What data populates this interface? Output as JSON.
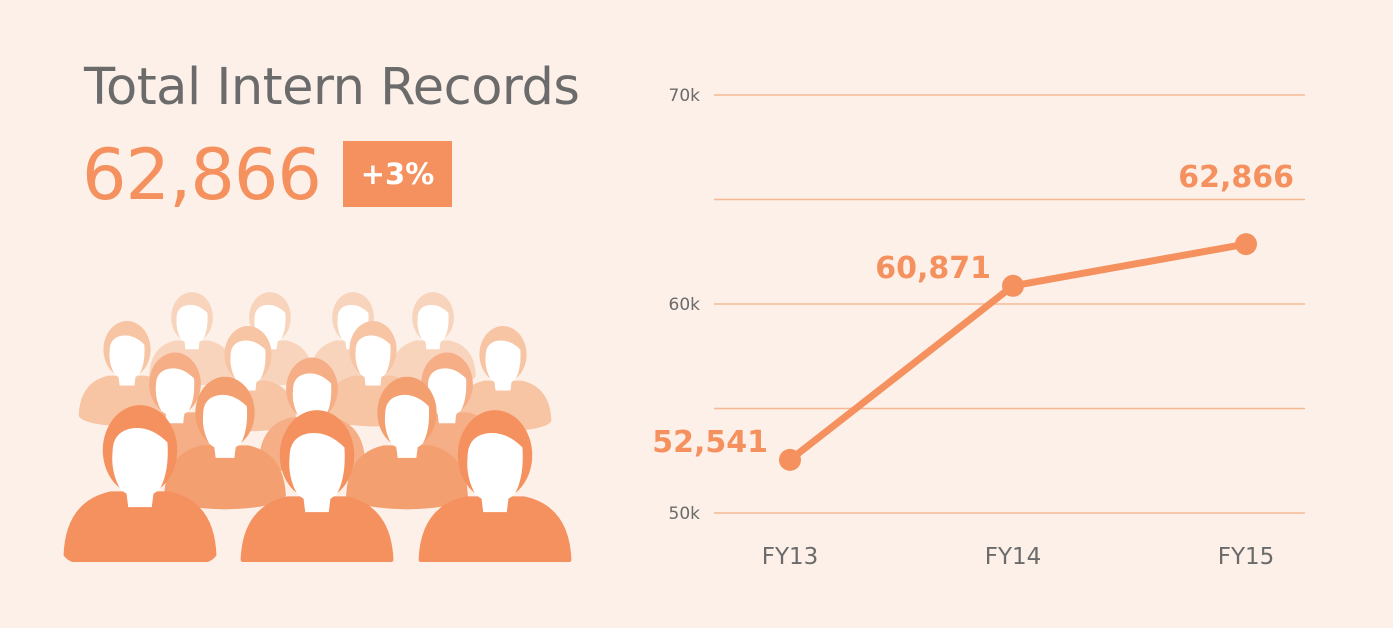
{
  "header": {
    "title": "Total Intern Records",
    "value": "62,866",
    "change_badge": "+3%"
  },
  "colors": {
    "background": "#fdf0e8",
    "accent": "#f4915e",
    "grid": "#f6b894",
    "text": "#6b6b6b"
  },
  "illustration": {
    "icon": "people-crowd-icon"
  },
  "chart_data": {
    "type": "line",
    "categories": [
      "FY13",
      "FY14",
      "FY15"
    ],
    "series": [
      {
        "values": [
          52541,
          60871,
          62866
        ]
      }
    ],
    "data_labels": [
      "52,541",
      "60,871",
      "62,866"
    ],
    "ylim": [
      50000,
      70000
    ],
    "yticks": [
      {
        "value": 50000,
        "label": "50k"
      },
      {
        "value": 60000,
        "label": "60k"
      },
      {
        "value": 70000,
        "label": "70k"
      }
    ],
    "grid": true,
    "legend": "none"
  }
}
